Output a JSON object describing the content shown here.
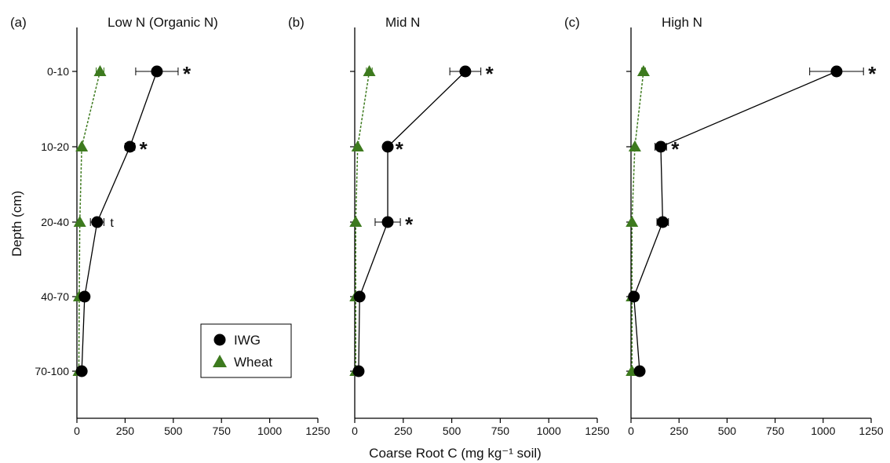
{
  "figure": {
    "xlabel": "Coarse Root C (mg kg⁻¹ soil)",
    "ylabel": "Depth (cm)",
    "colors": {
      "iwg": "#000000",
      "wheat": "#3d7a1e"
    }
  },
  "chart_data": [
    {
      "type": "line",
      "panel_label": "(a)",
      "title": "Low N (Organic N)",
      "categories": [
        "0-10",
        "10-20",
        "20-40",
        "40-70",
        "70-100"
      ],
      "xlim": [
        0,
        1250
      ],
      "xticks": [
        0,
        250,
        500,
        750,
        1000,
        1250
      ],
      "series": [
        {
          "name": "IWG",
          "marker": "circle",
          "values": [
            415,
            275,
            105,
            40,
            25
          ],
          "errors": [
            110,
            25,
            35,
            10,
            10
          ]
        },
        {
          "name": "Wheat",
          "marker": "triangle",
          "values": [
            120,
            25,
            15,
            12,
            10
          ],
          "errors": [
            20,
            5,
            5,
            4,
            4
          ]
        }
      ],
      "annotations": [
        "*",
        "*",
        "t",
        "",
        ""
      ],
      "legend": {
        "position": "bottom-right"
      }
    },
    {
      "type": "line",
      "panel_label": "(b)",
      "title": "Mid N",
      "categories": [
        "0-10",
        "10-20",
        "20-40",
        "40-70",
        "70-100"
      ],
      "xlim": [
        0,
        1250
      ],
      "xticks": [
        0,
        250,
        500,
        750,
        1000,
        1250
      ],
      "series": [
        {
          "name": "IWG",
          "marker": "circle",
          "values": [
            570,
            170,
            170,
            25,
            20
          ],
          "errors": [
            80,
            15,
            65,
            8,
            8
          ]
        },
        {
          "name": "Wheat",
          "marker": "triangle",
          "values": [
            75,
            15,
            5,
            5,
            5
          ],
          "errors": [
            15,
            5,
            3,
            3,
            3
          ]
        }
      ],
      "annotations": [
        "*",
        "*",
        "*",
        "",
        ""
      ]
    },
    {
      "type": "line",
      "panel_label": "(c)",
      "title": "High N",
      "categories": [
        "0-10",
        "10-20",
        "20-40",
        "40-70",
        "70-100"
      ],
      "xlim": [
        0,
        1250
      ],
      "xticks": [
        0,
        250,
        500,
        750,
        1000,
        1250
      ],
      "series": [
        {
          "name": "IWG",
          "marker": "circle",
          "values": [
            1070,
            155,
            165,
            15,
            45
          ],
          "errors": [
            140,
            30,
            30,
            8,
            10
          ]
        },
        {
          "name": "Wheat",
          "marker": "triangle",
          "values": [
            65,
            20,
            5,
            5,
            5
          ],
          "errors": [
            10,
            5,
            3,
            3,
            3
          ]
        }
      ],
      "annotations": [
        "*",
        "*",
        "",
        "",
        ""
      ]
    }
  ]
}
